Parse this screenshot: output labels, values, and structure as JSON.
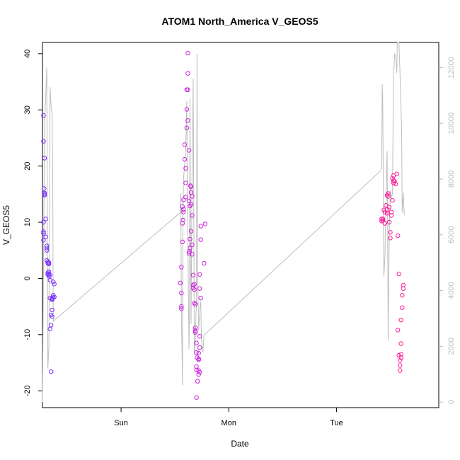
{
  "chart_data": {
    "type": "scatter",
    "title": "ATOM1 North_America V_GEOS5",
    "xlabel": "Date",
    "ylabel": "V_GEOS5",
    "x_tick_labels": [
      "Sun",
      "Mon",
      "Tue"
    ],
    "x_ticks_days": [
      1,
      2,
      3
    ],
    "xlim_days": [
      0.27,
      3.95
    ],
    "ylim": [
      -23,
      42
    ],
    "y_ticks": [
      -20,
      -10,
      0,
      10,
      20,
      30,
      40
    ],
    "y2lim": [
      -200,
      12900
    ],
    "y2_ticks": [
      0,
      2000,
      4000,
      6000,
      8000,
      10000,
      12000
    ],
    "grid": false,
    "legend": "none",
    "point_colors": {
      "sunday_flight": "#7b2fff",
      "monday_flight": "#cc22dd",
      "tuesday_flight": "#ff1a99"
    },
    "line_color": "#bebebe",
    "series": [
      {
        "kind": "points",
        "values": [
          [
            0.28,
            29.0
          ],
          [
            0.28,
            24.4
          ],
          [
            0.29,
            21.4
          ],
          [
            0.285,
            16.0
          ],
          [
            0.29,
            15.2
          ],
          [
            0.29,
            14.8
          ],
          [
            0.29,
            15.0
          ],
          [
            0.28,
            10.0
          ],
          [
            0.28,
            8.3
          ],
          [
            0.28,
            8.0
          ],
          [
            0.28,
            6.8
          ],
          [
            0.3,
            10.6
          ],
          [
            0.3,
            7.4
          ],
          [
            0.31,
            5.8
          ],
          [
            0.31,
            5.4
          ],
          [
            0.31,
            5.0
          ],
          [
            0.31,
            3.2
          ],
          [
            0.32,
            3.0
          ],
          [
            0.32,
            2.7
          ],
          [
            0.33,
            2.8
          ],
          [
            0.33,
            2.6
          ],
          [
            0.32,
            1.0
          ],
          [
            0.32,
            0.7
          ],
          [
            0.33,
            0.8
          ],
          [
            0.33,
            0.4
          ],
          [
            0.34,
            0.6
          ],
          [
            0.33,
            1.2
          ],
          [
            0.34,
            -0.3
          ],
          [
            0.34,
            -3.5
          ],
          [
            0.36,
            -3.6
          ],
          [
            0.36,
            -3.8
          ],
          [
            0.37,
            -3.4
          ],
          [
            0.37,
            -3.0
          ],
          [
            0.38,
            -3.3
          ],
          [
            0.38,
            -1.0
          ],
          [
            0.37,
            -0.6
          ],
          [
            0.35,
            -6.5
          ],
          [
            0.36,
            -6.8
          ],
          [
            0.36,
            -5.6
          ],
          [
            0.35,
            -8.3
          ],
          [
            0.34,
            -9.0
          ],
          [
            0.35,
            -16.6
          ]
        ]
      },
      {
        "kind": "points",
        "values": [
          [
            1.55,
            -0.8
          ],
          [
            1.56,
            -2.6
          ],
          [
            1.56,
            -5.0
          ],
          [
            1.56,
            -5.4
          ],
          [
            1.56,
            2.0
          ],
          [
            1.57,
            6.5
          ],
          [
            1.57,
            9.8
          ],
          [
            1.575,
            10.4
          ],
          [
            1.58,
            11.8
          ],
          [
            1.58,
            12.3
          ],
          [
            1.57,
            12.8
          ],
          [
            1.58,
            14.0
          ],
          [
            1.59,
            23.8
          ],
          [
            1.59,
            21.2
          ],
          [
            1.6,
            19.6
          ],
          [
            1.6,
            17.0
          ],
          [
            1.6,
            14.5
          ],
          [
            1.61,
            30.1
          ],
          [
            1.61,
            26.8
          ],
          [
            1.62,
            28.1
          ],
          [
            1.61,
            33.6
          ],
          [
            1.62,
            33.6
          ],
          [
            1.62,
            36.5
          ],
          [
            1.62,
            40.1
          ],
          [
            1.63,
            22.8
          ],
          [
            1.63,
            13.8
          ],
          [
            1.64,
            12.9
          ],
          [
            1.64,
            7.0
          ],
          [
            1.635,
            4.8
          ],
          [
            1.63,
            4.5
          ],
          [
            1.64,
            5.4
          ],
          [
            1.645,
            16.5
          ],
          [
            1.65,
            16.3
          ],
          [
            1.65,
            15.3
          ],
          [
            1.66,
            14.6
          ],
          [
            1.65,
            13.2
          ],
          [
            1.66,
            11.2
          ],
          [
            1.65,
            8.4
          ],
          [
            1.66,
            6.0
          ],
          [
            1.66,
            4.3
          ],
          [
            1.67,
            0.6
          ],
          [
            1.67,
            -1.2
          ],
          [
            1.67,
            -1.7
          ],
          [
            1.68,
            -1.0
          ],
          [
            1.68,
            -2.0
          ],
          [
            1.68,
            -4.4
          ],
          [
            1.69,
            -4.6
          ],
          [
            1.69,
            -8.8
          ],
          [
            1.69,
            -9.3
          ],
          [
            1.69,
            -9.6
          ],
          [
            1.7,
            -11.5
          ],
          [
            1.7,
            -13.2
          ],
          [
            1.705,
            -14.1
          ],
          [
            1.7,
            -15.7
          ],
          [
            1.7,
            -16.3
          ],
          [
            1.71,
            -18.3
          ],
          [
            1.7,
            -21.2
          ],
          [
            1.72,
            -13.3
          ],
          [
            1.72,
            -14.3
          ],
          [
            1.72,
            -14.5
          ],
          [
            1.72,
            -16.4
          ],
          [
            1.72,
            -17.1
          ],
          [
            1.73,
            -16.7
          ],
          [
            1.73,
            -12.3
          ],
          [
            1.73,
            -10.3
          ],
          [
            1.74,
            -3.5
          ],
          [
            1.73,
            -1.8
          ],
          [
            1.73,
            0.7
          ],
          [
            1.74,
            6.9
          ],
          [
            1.74,
            9.3
          ],
          [
            1.77,
            2.7
          ],
          [
            1.78,
            9.7
          ]
        ]
      },
      {
        "kind": "points",
        "values": [
          [
            3.42,
            10.6
          ],
          [
            3.42,
            10.2
          ],
          [
            3.43,
            10.6
          ],
          [
            3.43,
            10.3
          ],
          [
            3.44,
            12.2
          ],
          [
            3.45,
            11.8
          ],
          [
            3.45,
            9.8
          ],
          [
            3.46,
            13.0
          ],
          [
            3.47,
            12.3
          ],
          [
            3.47,
            11.6
          ],
          [
            3.47,
            14.8
          ],
          [
            3.48,
            15.1
          ],
          [
            3.48,
            14.6
          ],
          [
            3.49,
            12.7
          ],
          [
            3.49,
            10.0
          ],
          [
            3.5,
            8.2
          ],
          [
            3.5,
            7.2
          ],
          [
            3.51,
            11.2
          ],
          [
            3.51,
            11.8
          ],
          [
            3.52,
            13.9
          ],
          [
            3.52,
            17.8
          ],
          [
            3.53,
            18.3
          ],
          [
            3.53,
            17.4
          ],
          [
            3.53,
            17.0
          ],
          [
            3.54,
            17.3
          ],
          [
            3.55,
            16.8
          ],
          [
            3.56,
            18.6
          ],
          [
            3.57,
            7.6
          ],
          [
            3.58,
            0.8
          ],
          [
            3.57,
            -9.2
          ],
          [
            3.58,
            -13.7
          ],
          [
            3.59,
            -14.6
          ],
          [
            3.59,
            -15.5
          ],
          [
            3.59,
            -16.4
          ],
          [
            3.6,
            -14.1
          ],
          [
            3.6,
            -13.5
          ],
          [
            3.6,
            -11.6
          ],
          [
            3.6,
            -7.4
          ],
          [
            3.61,
            -5.2
          ],
          [
            3.61,
            -3.0
          ],
          [
            3.62,
            -1.8
          ],
          [
            3.62,
            -1.2
          ]
        ]
      },
      {
        "kind": "line",
        "axis": "right",
        "values": [
          [
            0.27,
            0
          ],
          [
            0.29,
            10000
          ],
          [
            0.3,
            11000
          ],
          [
            0.31,
            12000
          ],
          [
            0.32,
            1200
          ],
          [
            0.33,
            2000
          ],
          [
            0.34,
            11300
          ],
          [
            0.35,
            10600
          ],
          [
            0.36,
            10300
          ],
          [
            0.365,
            8000
          ],
          [
            0.37,
            2900
          ],
          [
            1.55,
            6800
          ],
          [
            1.555,
            7500
          ],
          [
            1.56,
            3000
          ],
          [
            1.565,
            2000
          ],
          [
            1.57,
            600
          ],
          [
            1.575,
            6800
          ],
          [
            1.58,
            8000
          ],
          [
            1.6,
            9000
          ],
          [
            1.61,
            10800
          ],
          [
            1.615,
            7500
          ],
          [
            1.62,
            6000
          ],
          [
            1.625,
            4000
          ],
          [
            1.63,
            1900
          ],
          [
            1.635,
            3500
          ],
          [
            1.64,
            10900
          ],
          [
            1.645,
            5500
          ],
          [
            1.65,
            2800
          ],
          [
            1.66,
            8500
          ],
          [
            1.665,
            9800
          ],
          [
            1.67,
            11600
          ],
          [
            1.675,
            7000
          ],
          [
            1.68,
            1700
          ],
          [
            1.69,
            2200
          ],
          [
            1.695,
            3000
          ],
          [
            1.7,
            3600
          ],
          [
            1.705,
            12500
          ],
          [
            1.71,
            4800
          ],
          [
            1.72,
            2600
          ],
          [
            1.73,
            3200
          ],
          [
            1.735,
            3500
          ],
          [
            1.74,
            3600
          ],
          [
            1.745,
            2400
          ],
          [
            1.75,
            2100
          ],
          [
            1.76,
            1800
          ],
          [
            1.77,
            2400
          ],
          [
            3.41,
            8300
          ],
          [
            3.42,
            8400
          ],
          [
            3.425,
            11400
          ],
          [
            3.43,
            10600
          ],
          [
            3.44,
            4500
          ],
          [
            3.45,
            5200
          ],
          [
            3.46,
            7200
          ],
          [
            3.47,
            9000
          ],
          [
            3.475,
            6500
          ],
          [
            3.48,
            2200
          ],
          [
            3.49,
            6000
          ],
          [
            3.5,
            7600
          ],
          [
            3.51,
            7300
          ],
          [
            3.52,
            7500
          ],
          [
            3.53,
            12000
          ],
          [
            3.535,
            12000
          ],
          [
            3.54,
            12500
          ],
          [
            3.55,
            12400
          ],
          [
            3.56,
            11800
          ],
          [
            3.565,
            12900
          ],
          [
            3.57,
            12900
          ],
          [
            3.58,
            12900
          ],
          [
            3.59,
            11800
          ],
          [
            3.6,
            10500
          ],
          [
            3.605,
            9800
          ],
          [
            3.61,
            6800
          ],
          [
            3.62,
            7500
          ],
          [
            3.63,
            6700
          ]
        ]
      }
    ]
  }
}
